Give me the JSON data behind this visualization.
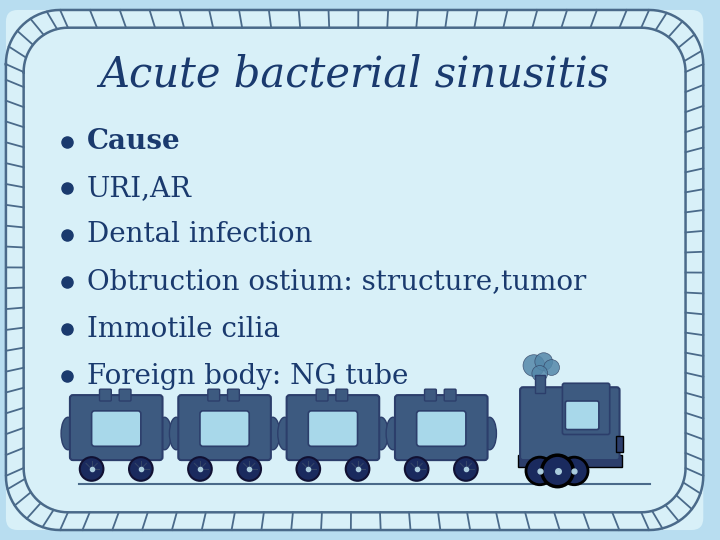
{
  "title": "Acute bacterial sinusitis",
  "title_color": "#1a3a6e",
  "title_fontsize": 30,
  "bullet_items": [
    "Cause",
    "URI,AR",
    "Dental infection",
    "Obtruction ostium: structure,tumor",
    "Immotile cilia",
    "Foreign body: NG tube"
  ],
  "bullet_bold": [
    true,
    false,
    false,
    false,
    false,
    false
  ],
  "bullet_color": "#1a3a6e",
  "bullet_fontsize": 20,
  "background_color": "#d8f0f8",
  "border_color": "#4a6a8a",
  "outer_bg": "#b8ddf0",
  "train_body_color": "#3d5a80",
  "train_window_color": "#a8d8ea",
  "train_wheel_color": "#1a2a5e",
  "train_dark": "#2c3e6b"
}
